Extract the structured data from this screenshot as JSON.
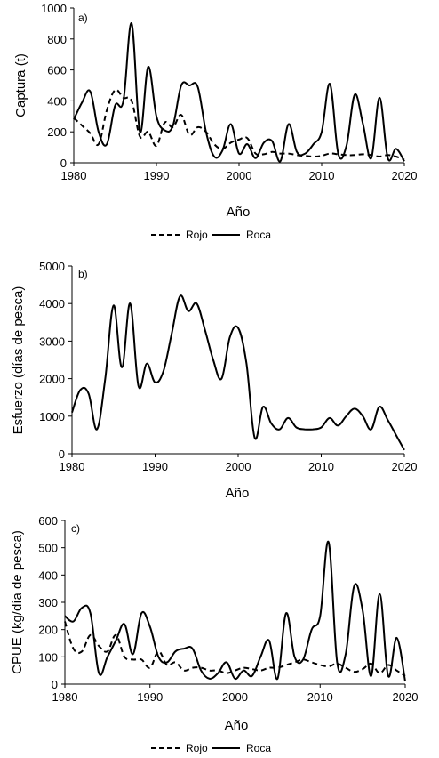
{
  "chart_data": [
    {
      "type": "line",
      "panel_label": "a)",
      "xlabel": "Año",
      "ylabel": "Captura (t)",
      "xlim": [
        1980,
        2020
      ],
      "ylim": [
        0,
        1000
      ],
      "xticks": [
        1980,
        1990,
        2000,
        2010,
        2020
      ],
      "yticks": [
        0,
        200,
        400,
        600,
        800,
        1000
      ],
      "legend": "bottom",
      "series": [
        {
          "name": "Rojo",
          "dash": true,
          "x": [
            1980,
            1981,
            1982,
            1983,
            1984,
            1985,
            1986,
            1987,
            1988,
            1989,
            1990,
            1991,
            1992,
            1993,
            1994,
            1995,
            1996,
            1997,
            1998,
            1999,
            2000,
            2001,
            2002,
            2003,
            2004,
            2005,
            2006,
            2007,
            2008,
            2009,
            2010,
            2011,
            2012,
            2013,
            2014,
            2015,
            2016,
            2017,
            2018,
            2019,
            2020
          ],
          "y": [
            290,
            240,
            190,
            120,
            340,
            470,
            420,
            400,
            170,
            200,
            110,
            260,
            230,
            310,
            180,
            230,
            200,
            120,
            90,
            130,
            150,
            160,
            60,
            55,
            70,
            60,
            60,
            50,
            45,
            40,
            45,
            60,
            55,
            50,
            50,
            55,
            50,
            40,
            50,
            40,
            20
          ]
        },
        {
          "name": "Roca",
          "dash": false,
          "x": [
            1980,
            1981,
            1982,
            1983,
            1984,
            1985,
            1986,
            1987,
            1988,
            1989,
            1990,
            1991,
            1992,
            1993,
            1994,
            1995,
            1996,
            1997,
            1998,
            1999,
            2000,
            2001,
            2002,
            2003,
            2004,
            2005,
            2006,
            2007,
            2008,
            2009,
            2010,
            2011,
            2012,
            2013,
            2014,
            2015,
            2016,
            2017,
            2018,
            2019,
            2020
          ],
          "y": [
            280,
            390,
            460,
            200,
            120,
            370,
            400,
            900,
            200,
            620,
            300,
            210,
            240,
            500,
            500,
            490,
            200,
            40,
            80,
            250,
            60,
            120,
            30,
            130,
            140,
            10,
            250,
            70,
            60,
            120,
            200,
            510,
            60,
            110,
            440,
            250,
            30,
            420,
            30,
            90,
            10
          ]
        }
      ]
    },
    {
      "type": "line",
      "panel_label": "b)",
      "xlabel": "Año",
      "ylabel": "Esfuerzo (días de pesca)",
      "xlim": [
        1980,
        2020
      ],
      "ylim": [
        0,
        5000
      ],
      "xticks": [
        1980,
        1990,
        2000,
        2010,
        2020
      ],
      "yticks": [
        0,
        1000,
        2000,
        3000,
        4000,
        5000
      ],
      "series": [
        {
          "name": "",
          "dash": false,
          "x": [
            1980,
            1981,
            1982,
            1983,
            1984,
            1985,
            1986,
            1987,
            1988,
            1989,
            1990,
            1991,
            1992,
            1993,
            1994,
            1995,
            1996,
            1997,
            1998,
            1999,
            2000,
            2001,
            2002,
            2003,
            2004,
            2005,
            2006,
            2007,
            2008,
            2009,
            2010,
            2011,
            2012,
            2013,
            2014,
            2015,
            2016,
            2017,
            2018,
            2019,
            2020
          ],
          "y": [
            1100,
            1700,
            1600,
            650,
            2000,
            3950,
            2300,
            4000,
            1800,
            2400,
            1900,
            2200,
            3200,
            4200,
            3800,
            4000,
            3300,
            2500,
            2000,
            3100,
            3350,
            2400,
            420,
            1250,
            800,
            650,
            950,
            700,
            650,
            650,
            700,
            950,
            750,
            1000,
            1200,
            1000,
            650,
            1250,
            900,
            500,
            100
          ]
        }
      ]
    },
    {
      "type": "line",
      "panel_label": "c)",
      "xlabel": "Año",
      "ylabel": "CPUE (kg/día de pesca)",
      "xlim": [
        1980,
        2020
      ],
      "ylim": [
        0,
        600
      ],
      "xticks": [
        1980,
        1990,
        2000,
        2010,
        2020
      ],
      "yticks": [
        0,
        100,
        200,
        300,
        400,
        500,
        600
      ],
      "legend": "bottom",
      "series": [
        {
          "name": "Rojo",
          "dash": true,
          "x": [
            1980,
            1981,
            1982,
            1983,
            1984,
            1985,
            1986,
            1987,
            1988,
            1989,
            1990,
            1991,
            1992,
            1993,
            1994,
            1995,
            1996,
            1997,
            1998,
            1999,
            2000,
            2001,
            2002,
            2003,
            2004,
            2005,
            2006,
            2007,
            2008,
            2009,
            2010,
            2011,
            2012,
            2013,
            2014,
            2015,
            2016,
            2017,
            2018,
            2019,
            2020
          ],
          "y": [
            230,
            130,
            120,
            180,
            140,
            120,
            180,
            100,
            90,
            90,
            60,
            120,
            70,
            80,
            50,
            60,
            60,
            50,
            50,
            40,
            50,
            60,
            55,
            50,
            60,
            60,
            70,
            80,
            90,
            80,
            70,
            65,
            75,
            60,
            45,
            55,
            75,
            40,
            70,
            50,
            30
          ]
        },
        {
          "name": "Roca",
          "dash": false,
          "x": [
            1980,
            1981,
            1982,
            1983,
            1984,
            1985,
            1986,
            1987,
            1988,
            1989,
            1990,
            1991,
            1992,
            1993,
            1994,
            1995,
            1996,
            1997,
            1998,
            1999,
            2000,
            2001,
            2002,
            2003,
            2004,
            2005,
            2006,
            2007,
            2008,
            2009,
            2010,
            2011,
            2012,
            2013,
            2014,
            2015,
            2016,
            2017,
            2018,
            2019,
            2020
          ],
          "y": [
            250,
            230,
            280,
            260,
            40,
            100,
            160,
            220,
            110,
            260,
            210,
            100,
            80,
            120,
            130,
            130,
            50,
            20,
            40,
            80,
            20,
            50,
            30,
            100,
            160,
            20,
            260,
            100,
            90,
            200,
            250,
            520,
            80,
            110,
            360,
            270,
            30,
            330,
            30,
            170,
            10
          ]
        }
      ]
    }
  ]
}
